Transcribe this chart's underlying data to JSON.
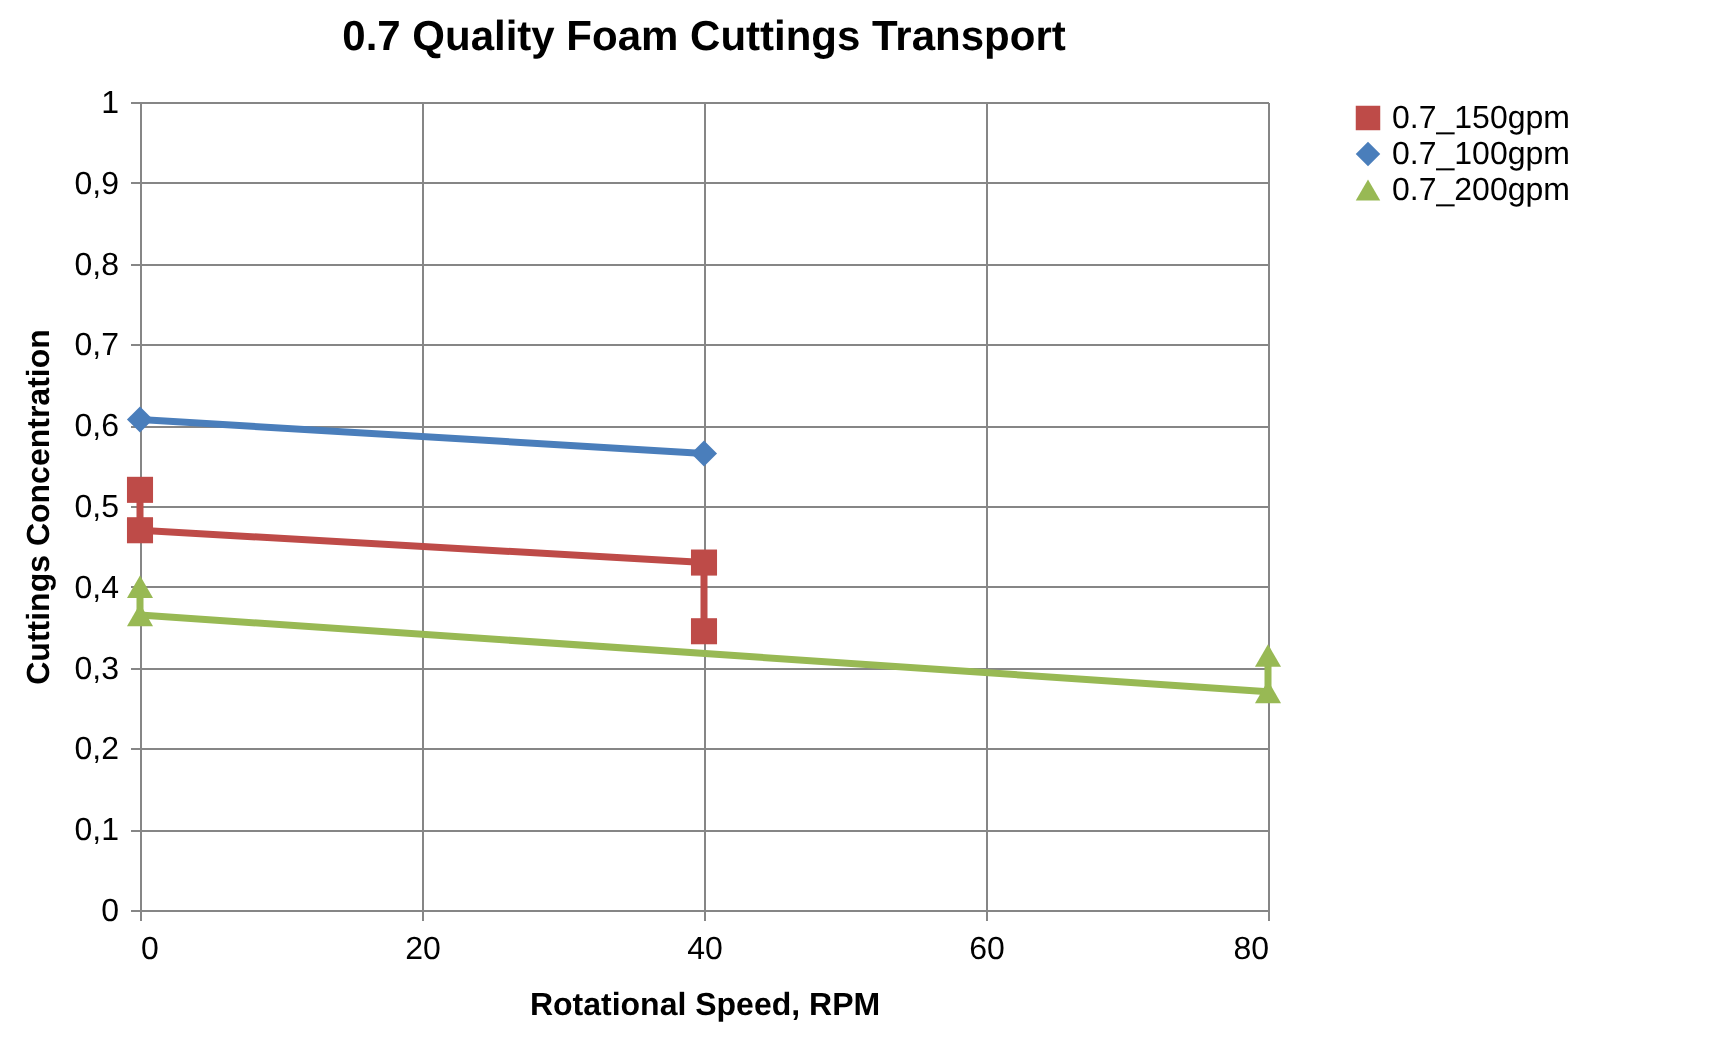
{
  "chart_data": {
    "type": "line",
    "title": "0.7 Quality Foam Cuttings Transport",
    "xlabel": "Rotational Speed, RPM",
    "ylabel": "Cuttings Concentration",
    "series": [
      {
        "name": "0.7_150gpm",
        "color": "#be4b48",
        "marker": "square",
        "x": [
          0,
          0,
          40,
          40
        ],
        "values": [
          0.52,
          0.47,
          0.43,
          0.345
        ]
      },
      {
        "name": "0.7_100gpm",
        "color": "#4a7ebb",
        "marker": "diamond",
        "x": [
          0,
          40
        ],
        "values": [
          0.607,
          0.565
        ]
      },
      {
        "name": "0.7_200gpm",
        "color": "#98b954",
        "marker": "triangle",
        "x": [
          0,
          0,
          80,
          80
        ],
        "values": [
          0.4,
          0.365,
          0.27,
          0.315
        ]
      }
    ],
    "xlim": [
      0,
      80
    ],
    "xticks": [
      0,
      20,
      40,
      60,
      80
    ],
    "ylim": [
      0,
      1
    ],
    "yticks": [
      0,
      {
        "value": 0.1,
        "label": "0,1"
      },
      {
        "value": 0.2,
        "label": "0,2"
      },
      {
        "value": 0.3,
        "label": "0,3"
      },
      {
        "value": 0.4,
        "label": "0,4"
      },
      {
        "value": 0.5,
        "label": "0,5"
      },
      {
        "value": 0.6,
        "label": "0,6"
      },
      {
        "value": 0.7,
        "label": "0,7"
      },
      {
        "value": 0.8,
        "label": "0,8"
      },
      {
        "value": 0.9,
        "label": "0,9"
      },
      1
    ],
    "grid": true,
    "legend": "right"
  }
}
